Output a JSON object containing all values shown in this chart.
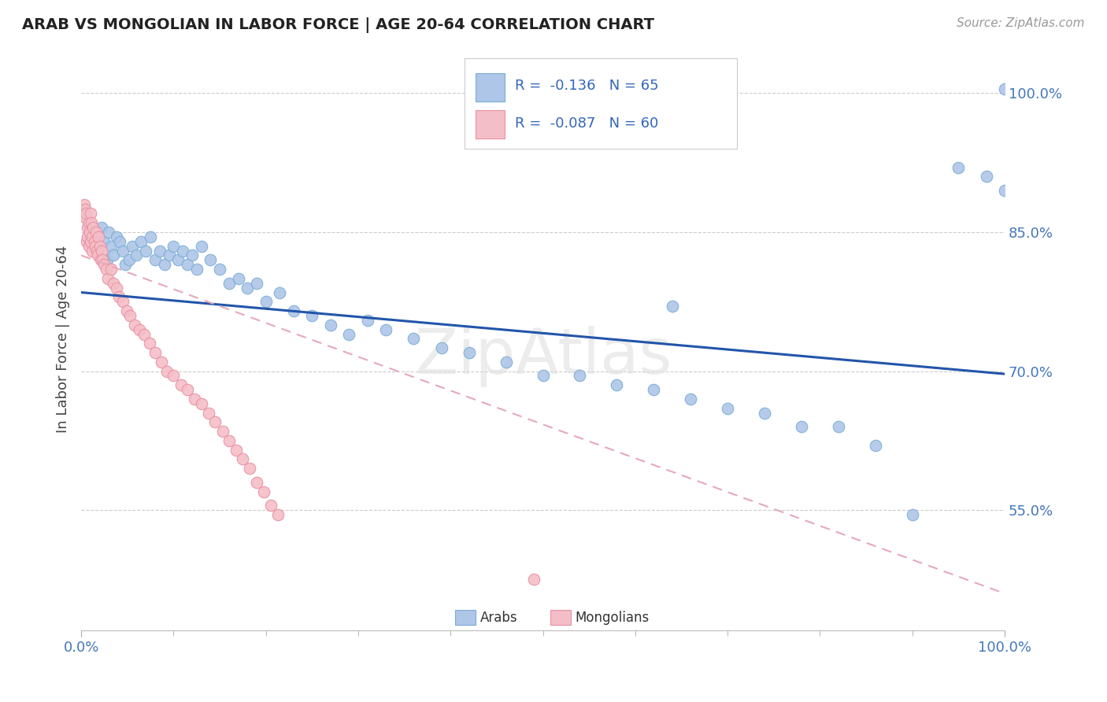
{
  "title": "ARAB VS MONGOLIAN IN LABOR FORCE | AGE 20-64 CORRELATION CHART",
  "source_text": "Source: ZipAtlas.com",
  "ylabel": "In Labor Force | Age 20-64",
  "xlim": [
    0.0,
    1.0
  ],
  "ylim": [
    0.42,
    1.05
  ],
  "y_tick_positions": [
    0.55,
    0.7,
    0.85,
    1.0
  ],
  "y_tick_labels": [
    "55.0%",
    "70.0%",
    "85.0%",
    "100.0%"
  ],
  "arab_color": "#aec6e8",
  "arab_edge_color": "#7aadd4",
  "mongol_color": "#f4bec8",
  "mongol_edge_color": "#e890a0",
  "arab_line_color": "#2255aa",
  "mongol_line_color": "#e8a8b8",
  "watermark": "ZipAtlas",
  "legend_r_arab": "R =  -0.136",
  "legend_n_arab": "N = 65",
  "legend_r_mongol": "R =  -0.087",
  "legend_n_mongol": "N = 60",
  "legend_label_arab": "Arabs",
  "legend_label_mongol": "Mongolians",
  "arab_line_x": [
    0.0,
    1.0
  ],
  "arab_line_y": [
    0.785,
    0.697
  ],
  "mongol_line_x": [
    0.0,
    1.0
  ],
  "mongol_line_y": [
    0.825,
    0.46
  ]
}
